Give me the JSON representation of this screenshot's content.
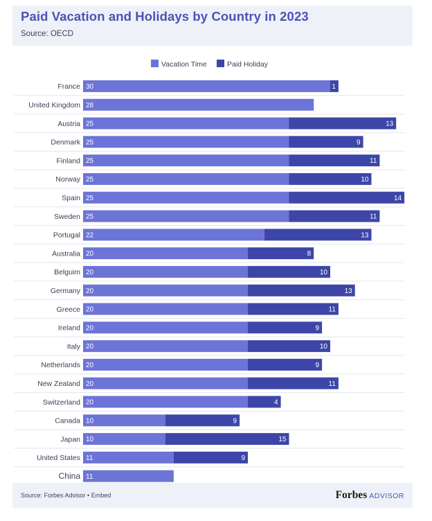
{
  "header": {
    "title": "Paid Vacation and Holidays by Country in 2023",
    "source": "Source: OECD"
  },
  "footer": {
    "source": "Source: Forbes Advisor • Embed",
    "brand": "Forbes",
    "brand_sub": "ADVISOR"
  },
  "colors": {
    "vacation": "#6c74d8",
    "holiday": "#3d46a8",
    "label_text": "#ffffff",
    "category_text": "#3b3f55",
    "row_line": "#e3e6ee"
  },
  "chart_data": {
    "type": "bar",
    "orientation": "horizontal",
    "stacked": true,
    "title": "Paid Vacation and Holidays by Country in 2023",
    "legend_position": "top-center",
    "categories": [
      "France",
      "United Kingdom",
      "Austria",
      "Denmark",
      "Finland",
      "Norway",
      "Spain",
      "Sweden",
      "Portugal",
      "Australia",
      "Belguim",
      "Germany",
      "Greece",
      "Ireland",
      "Italy",
      "Netherlands",
      "New Zealand",
      "Switzerland",
      "Canada",
      "Japan",
      "United States",
      "China"
    ],
    "series": [
      {
        "name": "Vacation Time",
        "values": [
          30,
          28,
          25,
          25,
          25,
          25,
          25,
          25,
          22,
          20,
          20,
          20,
          20,
          20,
          20,
          20,
          20,
          20,
          10,
          10,
          11,
          11
        ]
      },
      {
        "name": "Paid Holiday",
        "values": [
          1,
          null,
          13,
          9,
          11,
          10,
          14,
          11,
          13,
          8,
          10,
          13,
          11,
          9,
          10,
          9,
          11,
          4,
          9,
          15,
          9,
          null
        ]
      }
    ],
    "xlim": [
      0,
      39
    ]
  }
}
